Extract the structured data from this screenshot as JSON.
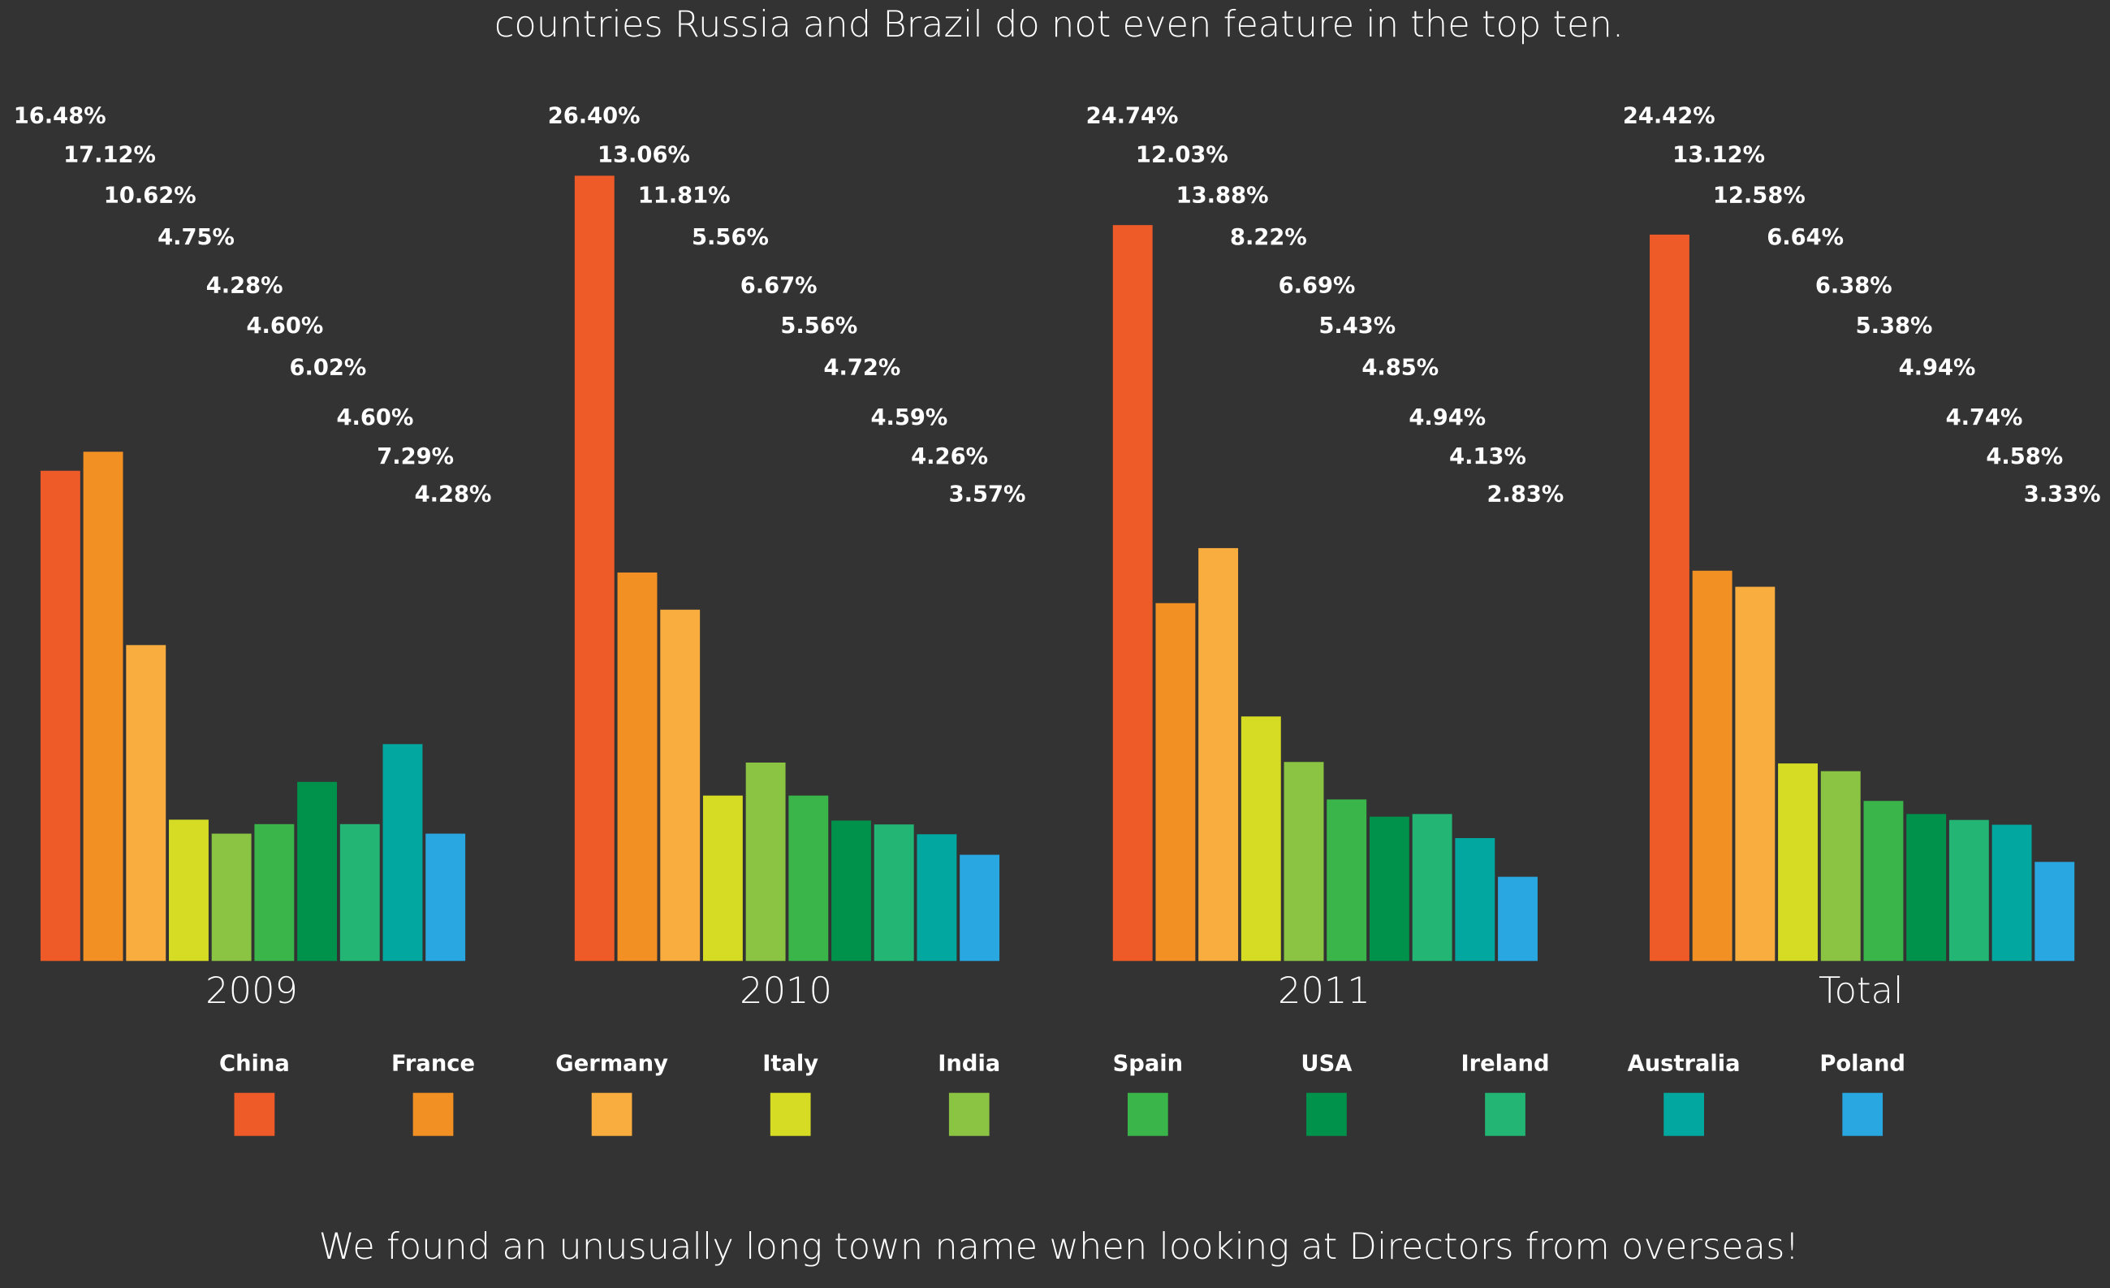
{
  "chart_data": {
    "type": "bar",
    "annotations": [
      "countries Russia and Brazil do not even feature in the top ten.",
      "We found an unusually long town name when looking at Directors from overseas!"
    ],
    "categories": [
      "2009",
      "2010",
      "2011",
      "Total"
    ],
    "ylim": [
      0,
      30
    ],
    "series": [
      {
        "name": "China",
        "color": "#ee5a28",
        "values": [
          16.48,
          26.4,
          24.74,
          24.42
        ],
        "value_labels": [
          "16.48%",
          "26.40%",
          "24.74%",
          "24.42%"
        ]
      },
      {
        "name": "France",
        "color": "#f39024",
        "values": [
          17.12,
          13.06,
          12.03,
          13.12
        ],
        "value_labels": [
          "17.12%",
          "13.06%",
          "12.03%",
          "13.12%"
        ]
      },
      {
        "name": "Germany",
        "color": "#f8ad3e",
        "values": [
          10.62,
          11.81,
          13.88,
          12.58
        ],
        "value_labels": [
          "10.62%",
          "11.81%",
          "13.88%",
          "12.58%"
        ]
      },
      {
        "name": "Italy",
        "color": "#d6dc23",
        "values": [
          4.75,
          5.56,
          8.22,
          6.64
        ],
        "value_labels": [
          "4.75%",
          "5.56%",
          "8.22%",
          "6.64%"
        ]
      },
      {
        "name": "India",
        "color": "#8bc443",
        "values": [
          4.28,
          6.67,
          6.69,
          6.38
        ],
        "value_labels": [
          "4.28%",
          "6.67%",
          "6.69%",
          "6.38%"
        ]
      },
      {
        "name": "Spain",
        "color": "#3ab54a",
        "values": [
          4.6,
          5.56,
          5.43,
          5.38
        ],
        "value_labels": [
          "4.60%",
          "5.56%",
          "5.43%",
          "5.38%"
        ]
      },
      {
        "name": "USA",
        "color": "#00914a",
        "values": [
          6.02,
          4.72,
          4.85,
          4.94
        ],
        "value_labels": [
          "6.02%",
          "4.72%",
          "4.85%",
          "4.94%"
        ]
      },
      {
        "name": "Ireland",
        "color": "#22b574",
        "values": [
          4.6,
          4.59,
          4.94,
          4.74
        ],
        "value_labels": [
          "4.60%",
          "4.59%",
          "4.94%",
          "4.74%"
        ]
      },
      {
        "name": "Australia",
        "color": "#02a89f",
        "values": [
          7.29,
          4.26,
          4.13,
          4.58
        ],
        "value_labels": [
          "7.29%",
          "4.26%",
          "4.13%",
          "4.58%"
        ]
      },
      {
        "name": "Poland",
        "color": "#29a7e0",
        "values": [
          4.28,
          3.57,
          2.83,
          3.33
        ],
        "value_labels": [
          "4.28%",
          "3.57%",
          "2.83%",
          "3.33%"
        ]
      }
    ]
  }
}
